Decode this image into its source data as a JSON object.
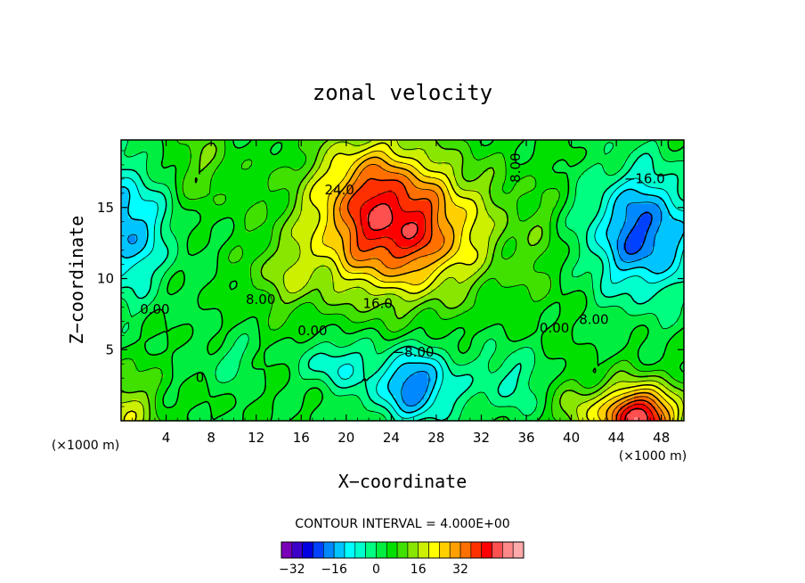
{
  "chart_data": {
    "type": "heatmap",
    "title": "zonal velocity",
    "xlabel": "X−coordinate",
    "ylabel": "Z−coordinate",
    "x_unit_left": "(×1000 m)",
    "x_unit_right": "(×1000 m)",
    "xlim": [
      0,
      50
    ],
    "ylim": [
      0,
      19.75
    ],
    "x_ticks": [
      4,
      8,
      12,
      16,
      20,
      24,
      28,
      32,
      36,
      40,
      44,
      48
    ],
    "y_ticks": [
      5,
      10,
      15
    ],
    "grid": false,
    "contour_interval_text": "CONTOUR INTERVAL = 4.000E+00",
    "contour_interval": 4,
    "value_range": [
      -36,
      36
    ],
    "negative_contours": "dashed",
    "features": [
      {
        "x": 24.5,
        "z": 13.5,
        "value": 38
      },
      {
        "x": 46,
        "z": 0.4,
        "value": 40
      },
      {
        "x": 46,
        "z": 13,
        "value": -24
      },
      {
        "x": 0,
        "z": 13.5,
        "value": -20
      },
      {
        "x": 26,
        "z": 2.5,
        "value": -22
      },
      {
        "x": 19,
        "z": 4,
        "value": -13
      },
      {
        "x": 0,
        "z": 0,
        "value": 14
      },
      {
        "x": 7,
        "z": 18,
        "value": 4
      },
      {
        "x": 40.5,
        "z": 0.5,
        "value": 10
      },
      {
        "x": 15,
        "z": 10,
        "value": 10
      },
      {
        "x": 35,
        "z": 3,
        "value": -9
      },
      {
        "x": 9,
        "z": 4,
        "value": -4
      }
    ],
    "contour_labels": [
      {
        "text": "24.0",
        "x": 19.4,
        "z": 16.2
      },
      {
        "text": "8.00",
        "x": 35.1,
        "z": 17.8,
        "rotate": -90
      },
      {
        "text": "−16.0",
        "x": 46.5,
        "z": 17.0
      },
      {
        "text": "0.00",
        "x": 3.0,
        "z": 7.8
      },
      {
        "text": "8.00",
        "x": 12.4,
        "z": 8.5
      },
      {
        "text": "16.0",
        "x": 22.8,
        "z": 8.2
      },
      {
        "text": "0.00",
        "x": 17.0,
        "z": 6.3
      },
      {
        "text": "−8.00",
        "x": 26.0,
        "z": 4.8
      },
      {
        "text": "0.00",
        "x": 38.5,
        "z": 6.5
      },
      {
        "text": "8.00",
        "x": 42.0,
        "z": 7.1
      },
      {
        "text": "0",
        "x": 7.0,
        "z": 3.0
      }
    ],
    "colorbar": {
      "colors": [
        "#7a00b8",
        "#3c00c8",
        "#0000e0",
        "#0040ff",
        "#0088ff",
        "#00c4ff",
        "#00ffff",
        "#00ffcc",
        "#00ff80",
        "#00ee40",
        "#00e000",
        "#40e000",
        "#88e600",
        "#ccf000",
        "#ffff00",
        "#ffd000",
        "#ffa000",
        "#ff7000",
        "#ff3000",
        "#ff0000",
        "#ff5050",
        "#ff8888",
        "#ffaaaa"
      ],
      "tick_labels": [
        "−32",
        "−16",
        "0",
        "16",
        "32"
      ],
      "tick_values": [
        -32,
        -16,
        0,
        16,
        32
      ]
    }
  }
}
